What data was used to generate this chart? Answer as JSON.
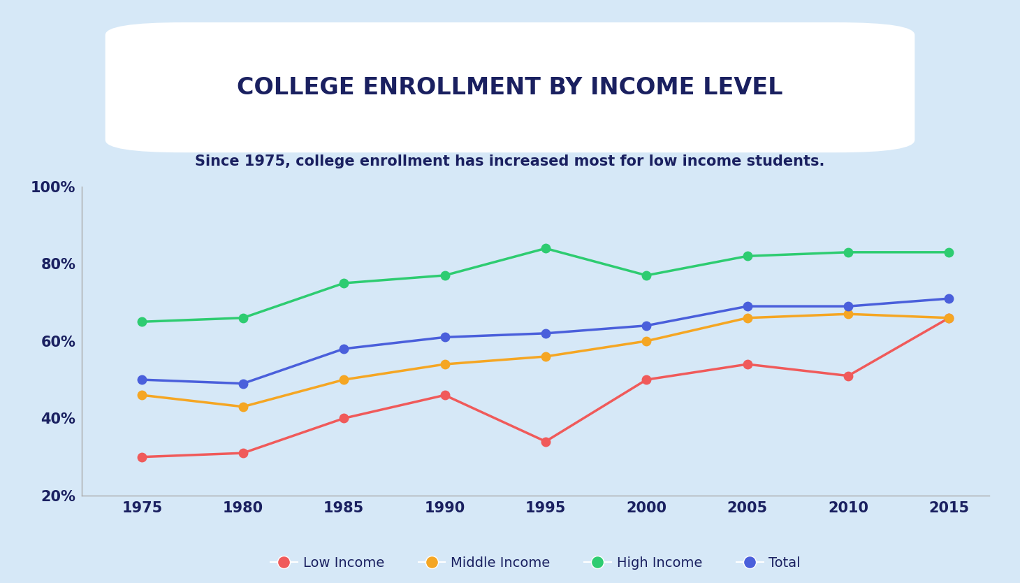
{
  "title": "COLLEGE ENROLLMENT BY INCOME LEVEL",
  "subtitle": "Since 1975, college enrollment has increased most for low income students.",
  "background_color": "#d6e8f7",
  "title_box_color": "#ffffff",
  "title_color": "#1a2060",
  "subtitle_color": "#1a2060",
  "x_values": [
    1975,
    1980,
    1985,
    1990,
    1995,
    2000,
    2005,
    2010,
    2015
  ],
  "series": [
    {
      "label": "Low Income",
      "color": "#f05a5a",
      "values": [
        30,
        31,
        40,
        46,
        34,
        50,
        54,
        51,
        66
      ]
    },
    {
      "label": "Middle Income",
      "color": "#f5a623",
      "values": [
        46,
        43,
        50,
        54,
        56,
        60,
        66,
        67,
        66
      ]
    },
    {
      "label": "High Income",
      "color": "#2ecc71",
      "values": [
        65,
        66,
        75,
        77,
        84,
        77,
        82,
        83,
        83
      ]
    },
    {
      "label": "Total",
      "color": "#4a5fdb",
      "values": [
        50,
        49,
        58,
        61,
        62,
        64,
        69,
        69,
        71
      ]
    }
  ],
  "ylim": [
    20,
    100
  ],
  "yticks": [
    20,
    40,
    60,
    80,
    100
  ],
  "line_width": 2.5,
  "marker_size": 9,
  "title_fontsize": 24,
  "subtitle_fontsize": 15,
  "tick_fontsize": 15
}
